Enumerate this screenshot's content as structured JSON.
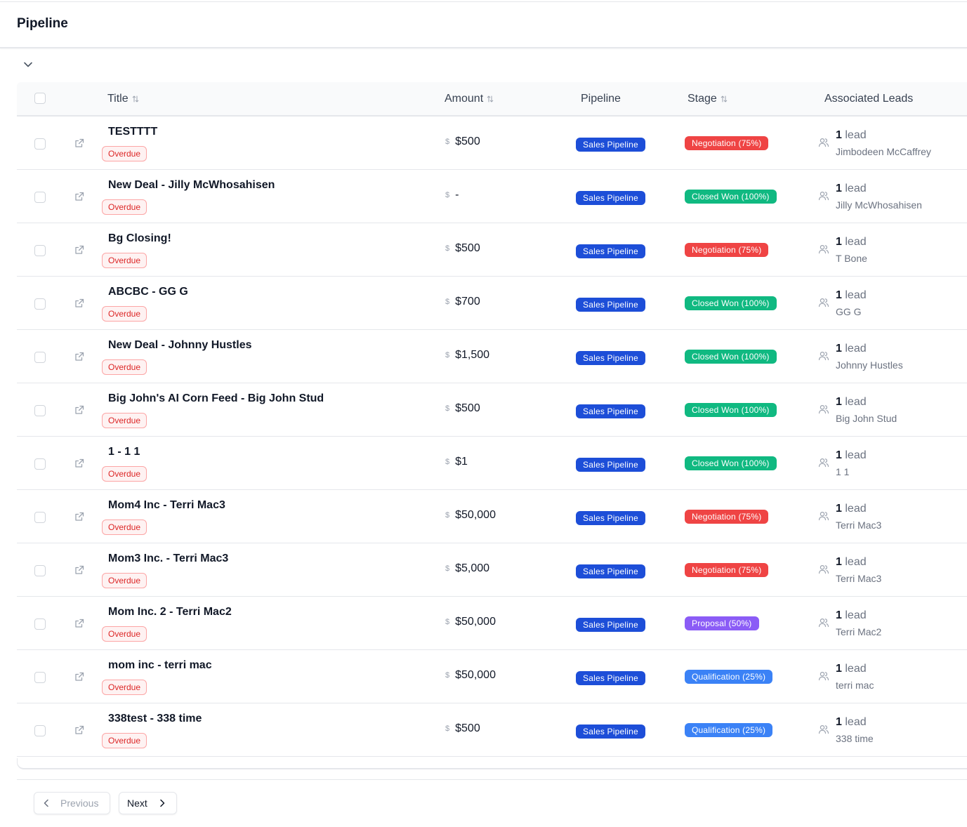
{
  "page": {
    "title": "Pipeline"
  },
  "table": {
    "columns": {
      "title": "Title",
      "amount": "Amount",
      "pipeline": "Pipeline",
      "stage": "Stage",
      "leads": "Associated Leads"
    },
    "rows": [
      {
        "title": "TESTTTT",
        "overdue": "Overdue",
        "amount": "$500",
        "pipeline": "Sales Pipeline",
        "stage": "Negotiation (75%)",
        "stage_color": "#ef4444",
        "lead_count": "1",
        "lead_word": "lead",
        "lead_name": "Jimbodeen McCaffrey"
      },
      {
        "title": "New Deal - Jilly McWhosahisen",
        "overdue": "Overdue",
        "amount": "-",
        "pipeline": "Sales Pipeline",
        "stage": "Closed Won (100%)",
        "stage_color": "#10b981",
        "lead_count": "1",
        "lead_word": "lead",
        "lead_name": "Jilly McWhosahisen"
      },
      {
        "title": "Bg Closing!",
        "overdue": "Overdue",
        "amount": "$500",
        "pipeline": "Sales Pipeline",
        "stage": "Negotiation (75%)",
        "stage_color": "#ef4444",
        "lead_count": "1",
        "lead_word": "lead",
        "lead_name": "T Bone"
      },
      {
        "title": "ABCBC - GG G",
        "overdue": "Overdue",
        "amount": "$700",
        "pipeline": "Sales Pipeline",
        "stage": "Closed Won (100%)",
        "stage_color": "#10b981",
        "lead_count": "1",
        "lead_word": "lead",
        "lead_name": "GG G"
      },
      {
        "title": "New Deal - Johnny Hustles",
        "overdue": "Overdue",
        "amount": "$1,500",
        "pipeline": "Sales Pipeline",
        "stage": "Closed Won (100%)",
        "stage_color": "#10b981",
        "lead_count": "1",
        "lead_word": "lead",
        "lead_name": "Johnny Hustles"
      },
      {
        "title": "Big John's AI Corn Feed - Big John Stud",
        "overdue": "Overdue",
        "amount": "$500",
        "pipeline": "Sales Pipeline",
        "stage": "Closed Won (100%)",
        "stage_color": "#10b981",
        "lead_count": "1",
        "lead_word": "lead",
        "lead_name": "Big John Stud"
      },
      {
        "title": "1 - 1 1",
        "overdue": "Overdue",
        "amount": "$1",
        "pipeline": "Sales Pipeline",
        "stage": "Closed Won (100%)",
        "stage_color": "#10b981",
        "lead_count": "1",
        "lead_word": "lead",
        "lead_name": "1 1"
      },
      {
        "title": "Mom4 Inc - Terri Mac3",
        "overdue": "Overdue",
        "amount": "$50,000",
        "pipeline": "Sales Pipeline",
        "stage": "Negotiation (75%)",
        "stage_color": "#ef4444",
        "lead_count": "1",
        "lead_word": "lead",
        "lead_name": "Terri Mac3"
      },
      {
        "title": "Mom3 Inc. - Terri Mac3",
        "overdue": "Overdue",
        "amount": "$5,000",
        "pipeline": "Sales Pipeline",
        "stage": "Negotiation (75%)",
        "stage_color": "#ef4444",
        "lead_count": "1",
        "lead_word": "lead",
        "lead_name": "Terri Mac3"
      },
      {
        "title": "Mom Inc. 2 - Terri Mac2",
        "overdue": "Overdue",
        "amount": "$50,000",
        "pipeline": "Sales Pipeline",
        "stage": "Proposal (50%)",
        "stage_color": "#8b5cf6",
        "lead_count": "1",
        "lead_word": "lead",
        "lead_name": "Terri Mac2"
      },
      {
        "title": "mom inc - terri mac",
        "overdue": "Overdue",
        "amount": "$50,000",
        "pipeline": "Sales Pipeline",
        "stage": "Qualification (25%)",
        "stage_color": "#3b82f6",
        "lead_count": "1",
        "lead_word": "lead",
        "lead_name": "terri mac"
      },
      {
        "title": "338test - 338 time",
        "overdue": "Overdue",
        "amount": "$500",
        "pipeline": "Sales Pipeline",
        "stage": "Qualification (25%)",
        "stage_color": "#3b82f6",
        "lead_count": "1",
        "lead_word": "lead",
        "lead_name": "338 time"
      }
    ]
  },
  "pagination": {
    "previous": "Previous",
    "next": "Next"
  },
  "colors": {
    "pipeline_pill": "#1d4ed8",
    "overdue_text": "#dc2626"
  },
  "icons": {
    "collapse": "chevron-down-icon",
    "sort": "sort-icon",
    "row_link": "external-link-icon",
    "amount": "dollar-icon",
    "leads": "users-icon",
    "prev": "chevron-left-icon",
    "next": "chevron-right-icon"
  }
}
